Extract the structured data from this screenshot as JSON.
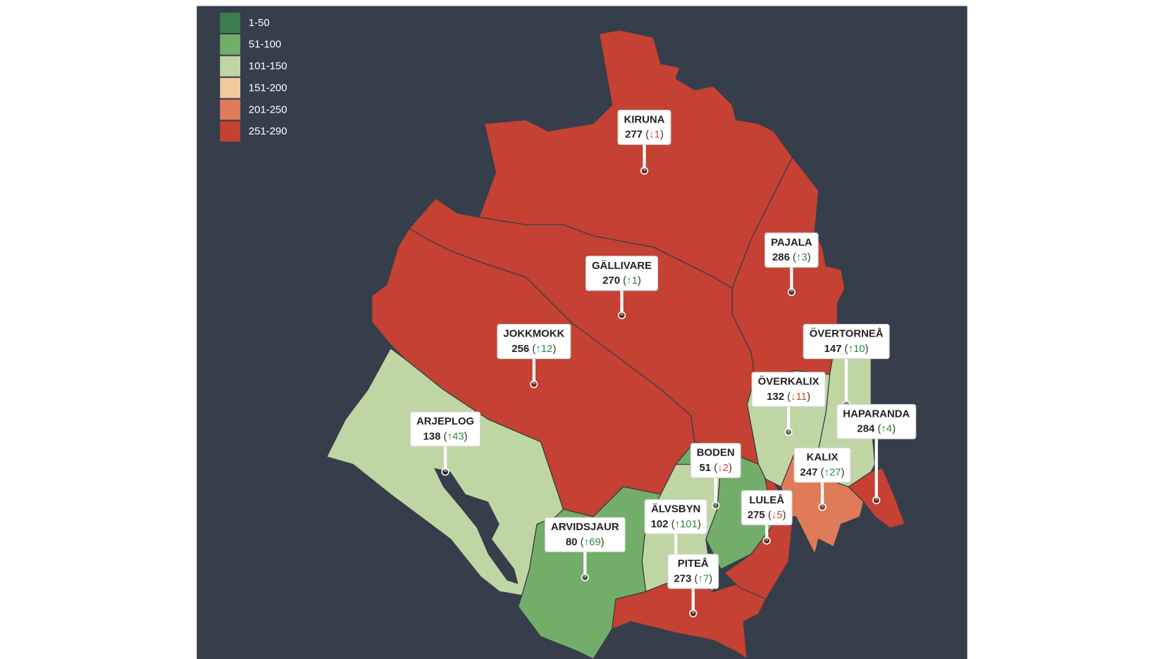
{
  "legend": [
    {
      "label": "1-50",
      "color": "#3b7d4f"
    },
    {
      "label": "51-100",
      "color": "#73ad6a"
    },
    {
      "label": "101-150",
      "color": "#bfd6a4"
    },
    {
      "label": "151-200",
      "color": "#f2c99b"
    },
    {
      "label": "201-250",
      "color": "#e07b5a"
    },
    {
      "label": "251-290",
      "color": "#c44133"
    }
  ],
  "regions": [
    {
      "name": "KIRUNA",
      "rank": 277,
      "change": -1,
      "change_label": "↓1",
      "color": "#c44133"
    },
    {
      "name": "PAJALA",
      "rank": 286,
      "change": 3,
      "change_label": "↑3",
      "color": "#c44133"
    },
    {
      "name": "GÄLLIVARE",
      "rank": 270,
      "change": 1,
      "change_label": "↑1",
      "color": "#c44133"
    },
    {
      "name": "JOKKMOKK",
      "rank": 256,
      "change": 12,
      "change_label": "↑12",
      "color": "#c44133"
    },
    {
      "name": "ARJEPLOG",
      "rank": 138,
      "change": 43,
      "change_label": "↑43",
      "color": "#bfd6a4"
    },
    {
      "name": "ARVIDSJAUR",
      "rank": 80,
      "change": 69,
      "change_label": "↑69",
      "color": "#73ad6a"
    },
    {
      "name": "ÄLVSBYN",
      "rank": 102,
      "change": 101,
      "change_label": "↑101",
      "color": "#bfd6a4"
    },
    {
      "name": "BODEN",
      "rank": 51,
      "change": -2,
      "change_label": "↓2",
      "color": "#73ad6a"
    },
    {
      "name": "PITEÅ",
      "rank": 273,
      "change": 7,
      "change_label": "↑7",
      "color": "#c44133"
    },
    {
      "name": "LULEÅ",
      "rank": 275,
      "change": -5,
      "change_label": "↓5",
      "color": "#c44133"
    },
    {
      "name": "ÖVERKALIX",
      "rank": 132,
      "change": -11,
      "change_label": "↓11",
      "color": "#bfd6a4"
    },
    {
      "name": "ÖVERTORNEÅ",
      "rank": 147,
      "change": 10,
      "change_label": "↑10",
      "color": "#bfd6a4"
    },
    {
      "name": "KALIX",
      "rank": 247,
      "change": 27,
      "change_label": "↑27",
      "color": "#e07b5a"
    },
    {
      "name": "HAPARANDA",
      "rank": 284,
      "change": 4,
      "change_label": "↑4",
      "color": "#c44133"
    }
  ]
}
